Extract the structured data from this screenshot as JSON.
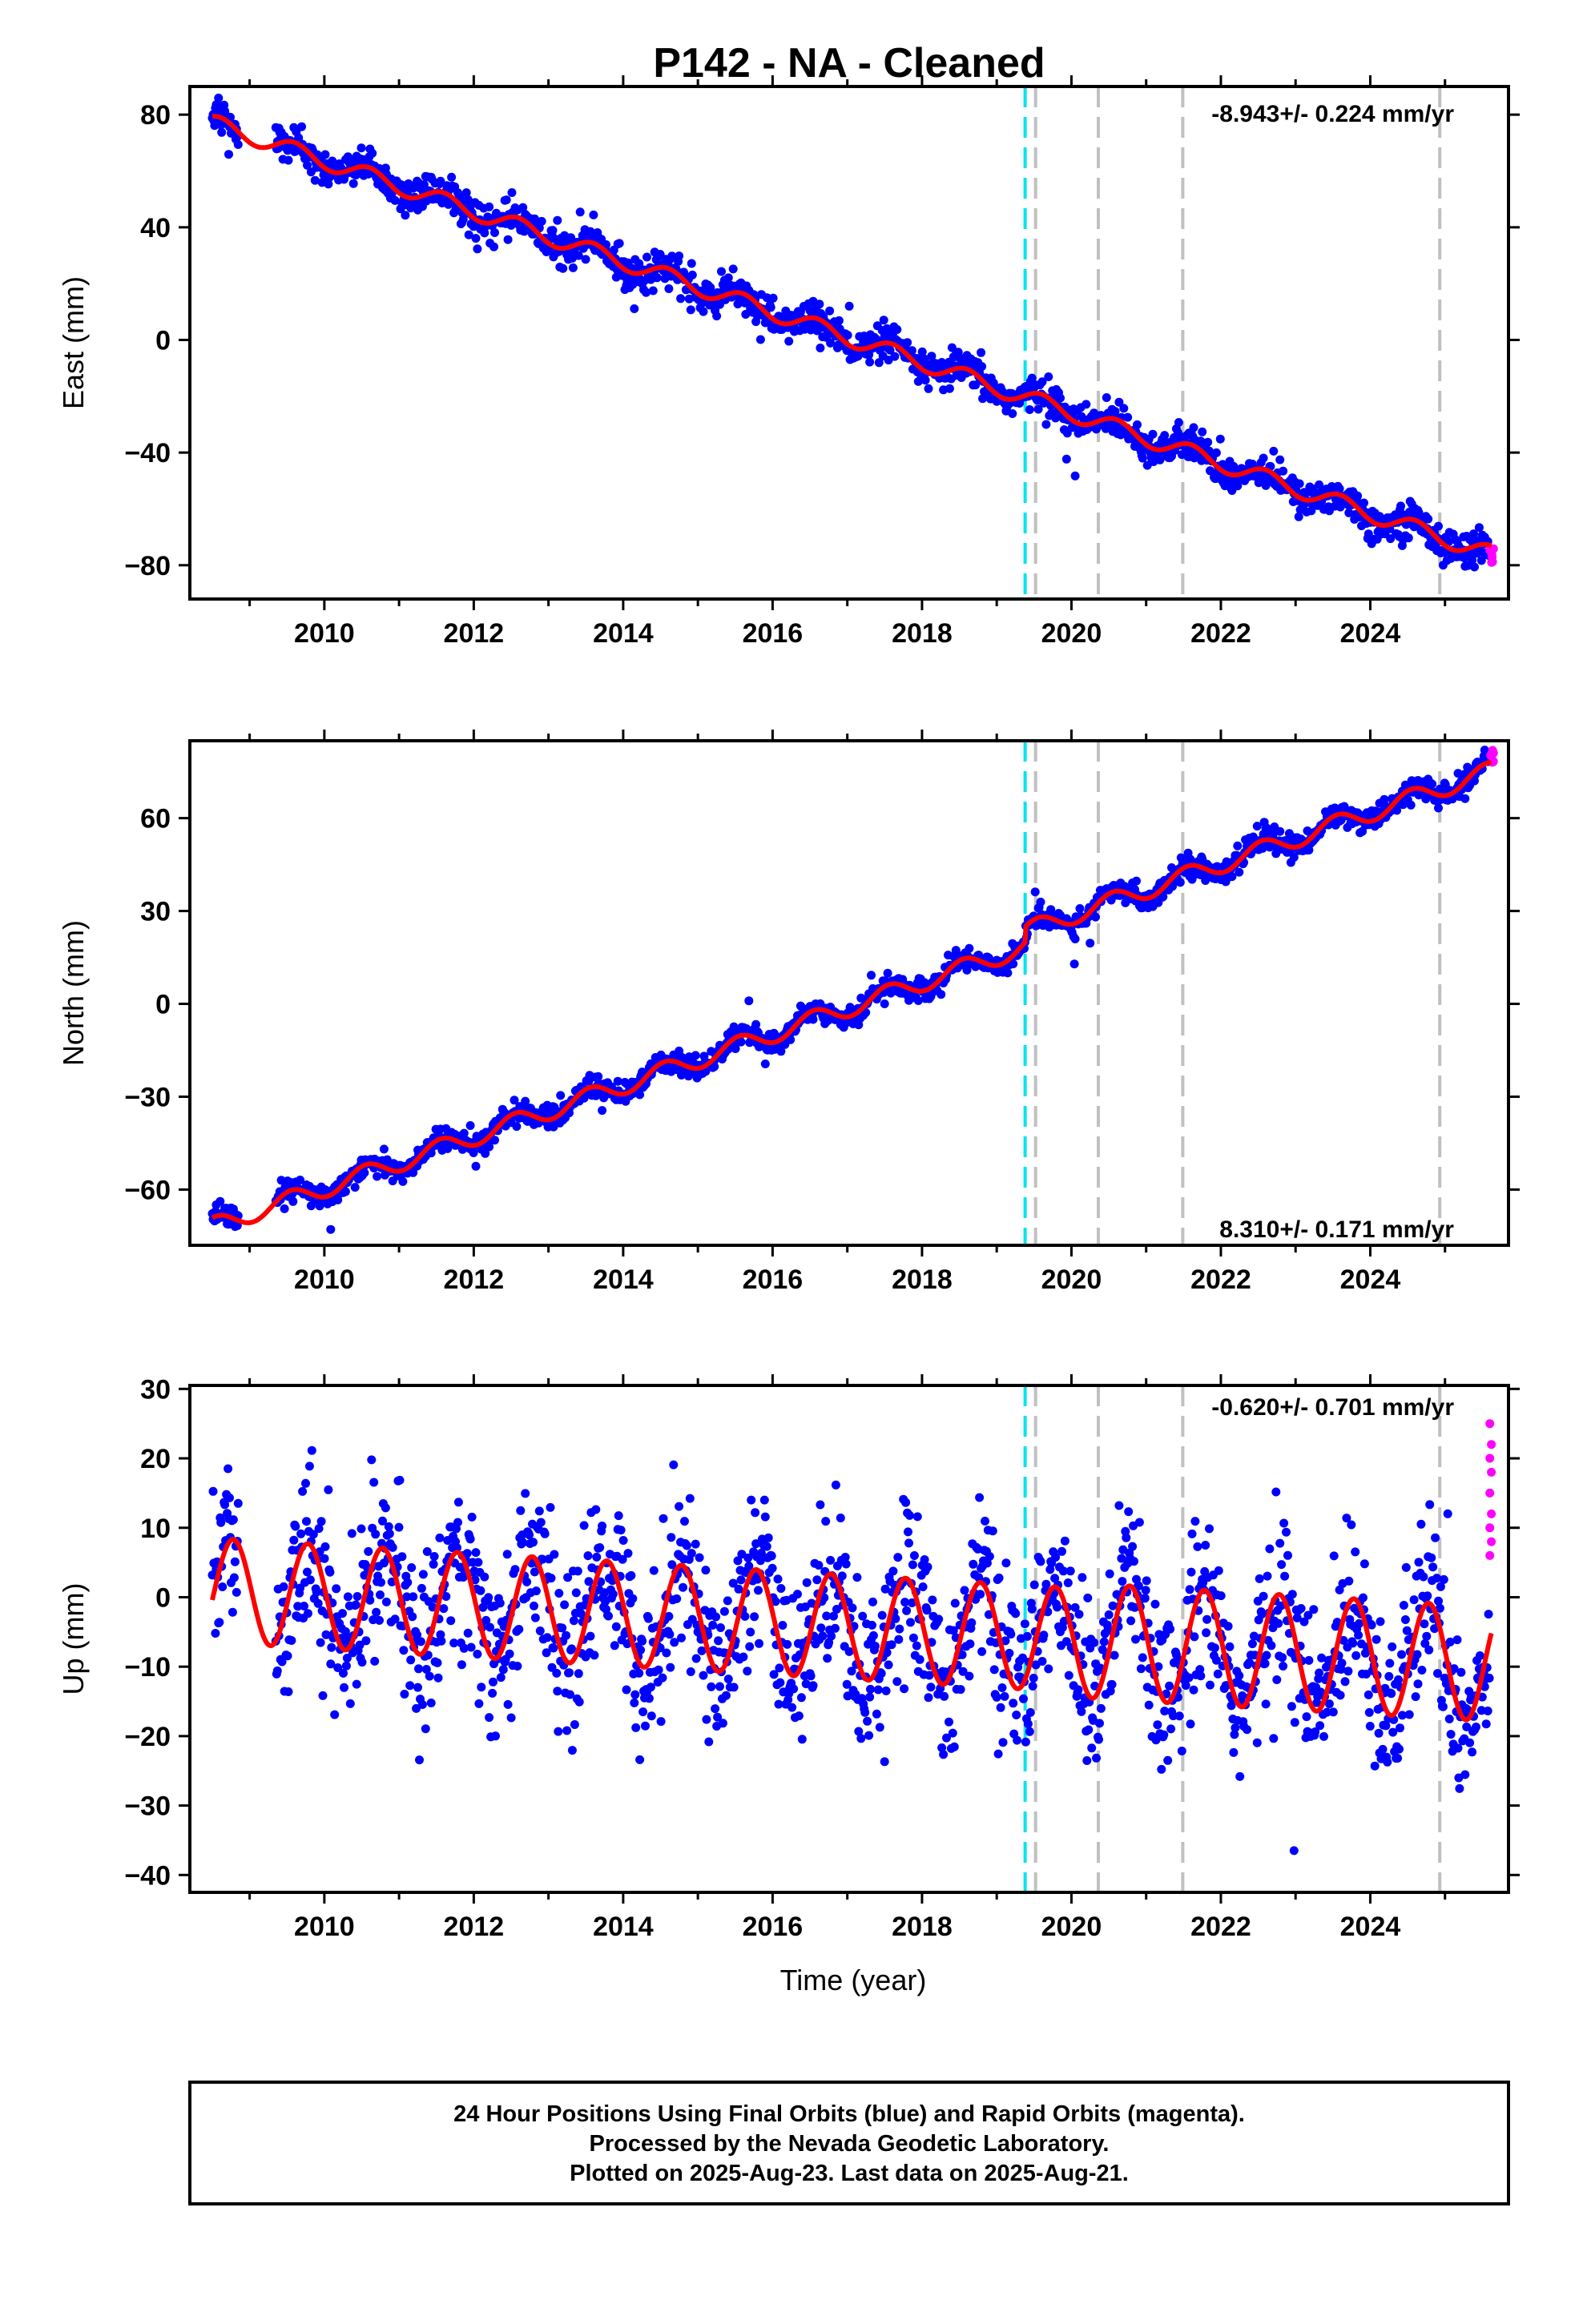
{
  "title": "P142  - NA - Cleaned",
  "x_axis_label": "Time (year)",
  "x_ticks": [
    "2010",
    "2012",
    "2014",
    "2016",
    "2018",
    "2020",
    "2022",
    "2024"
  ],
  "caption": [
    "24 Hour Positions Using Final Orbits (blue) and Rapid Orbits (magenta).",
    "Processed by the Nevada Geodetic Laboratory.",
    "Plotted on 2025-Aug-23. Last data on 2025-Aug-21."
  ],
  "colors": {
    "final_orbits": "#0000ff",
    "rapid_orbits": "#ff00ff",
    "model_fit": "#ff0000",
    "cyan_marker": "#00e5ee",
    "gray_marker": "#c0c0c0"
  },
  "chart_data": [
    {
      "type": "scatter",
      "panel": "east",
      "ylabel": "East (mm)",
      "rate_label": "-8.943+/- 0.224 mm/yr",
      "xlim": [
        2008.2,
        2025.85
      ],
      "ylim": [
        -92,
        90
      ],
      "y_ticks": [
        80,
        40,
        0,
        -40,
        -80
      ],
      "y_tick_labels": [
        "80",
        "40",
        "0",
        "−40",
        "−80"
      ],
      "trend": {
        "rate_mm_per_yr": -8.943,
        "value_at_2008_5": 77,
        "value_at_2009_3": 68
      },
      "seasonal": {
        "amplitude_mm": 3.0,
        "period_yr": 1.0,
        "peak_phase_yr": 0.6
      },
      "scatter_sd_mm": 3.0,
      "rapid_points": {
        "x_from": 2025.6,
        "x_to": 2025.65,
        "y_approx": -77
      },
      "vertical_markers": [
        {
          "x": 2019.38,
          "color": "cyan"
        },
        {
          "x": 2019.52,
          "color": "gray"
        },
        {
          "x": 2020.36,
          "color": "gray"
        },
        {
          "x": 2021.49,
          "color": "gray"
        },
        {
          "x": 2024.93,
          "color": "gray"
        }
      ]
    },
    {
      "type": "scatter",
      "panel": "north",
      "ylabel": "North (mm)",
      "rate_label": "8.310+/- 0.171 mm/yr",
      "xlim": [
        2008.2,
        2025.85
      ],
      "ylim": [
        -78,
        85
      ],
      "y_ticks": [
        60,
        30,
        0,
        -30,
        -60
      ],
      "y_tick_labels": [
        "60",
        "30",
        "0",
        "−30",
        "−60"
      ],
      "trend": {
        "rate_mm_per_yr": 8.31,
        "value_at_2008_5": -72,
        "value_at_2009_6": -64
      },
      "offsets": [
        {
          "x": 2019.38,
          "mm": 5
        }
      ],
      "seasonal": {
        "amplitude_mm": 3.0,
        "period_yr": 1.0,
        "peak_phase_yr": 0.55
      },
      "scatter_sd_mm": 1.8,
      "rapid_points": {
        "x_from": 2025.6,
        "x_to": 2025.65,
        "y_approx": 80
      },
      "vertical_markers": [
        {
          "x": 2019.38,
          "color": "cyan"
        },
        {
          "x": 2019.52,
          "color": "gray"
        },
        {
          "x": 2020.36,
          "color": "gray"
        },
        {
          "x": 2021.49,
          "color": "gray"
        },
        {
          "x": 2024.93,
          "color": "gray"
        }
      ]
    },
    {
      "type": "scatter",
      "panel": "up",
      "ylabel": "Up (mm)",
      "rate_label": "-0.620+/- 0.701 mm/yr",
      "xlim": [
        2008.2,
        2025.85
      ],
      "ylim": [
        -42.5,
        30.5
      ],
      "y_ticks": [
        30,
        20,
        10,
        0,
        -10,
        -20,
        -30,
        -40
      ],
      "y_tick_labels": [
        "30",
        "20",
        "10",
        "0",
        "−10",
        "−20",
        "−30",
        "−40"
      ],
      "trend": {
        "rate_mm_per_yr": -0.62,
        "value_at_2008_5": 1
      },
      "seasonal": {
        "amplitude_mm": 7.5,
        "period_yr": 1.0,
        "peak_phase_yr": 0.78
      },
      "scatter_sd_mm": 6.0,
      "rapid_points": {
        "x_from": 2025.6,
        "x_to": 2025.65,
        "y_values": [
          25,
          22,
          20,
          18,
          15,
          12,
          10,
          8,
          6
        ]
      },
      "vertical_markers": [
        {
          "x": 2019.38,
          "color": "cyan"
        },
        {
          "x": 2019.52,
          "color": "gray"
        },
        {
          "x": 2020.36,
          "color": "gray"
        },
        {
          "x": 2021.49,
          "color": "gray"
        },
        {
          "x": 2024.93,
          "color": "gray"
        }
      ]
    }
  ]
}
